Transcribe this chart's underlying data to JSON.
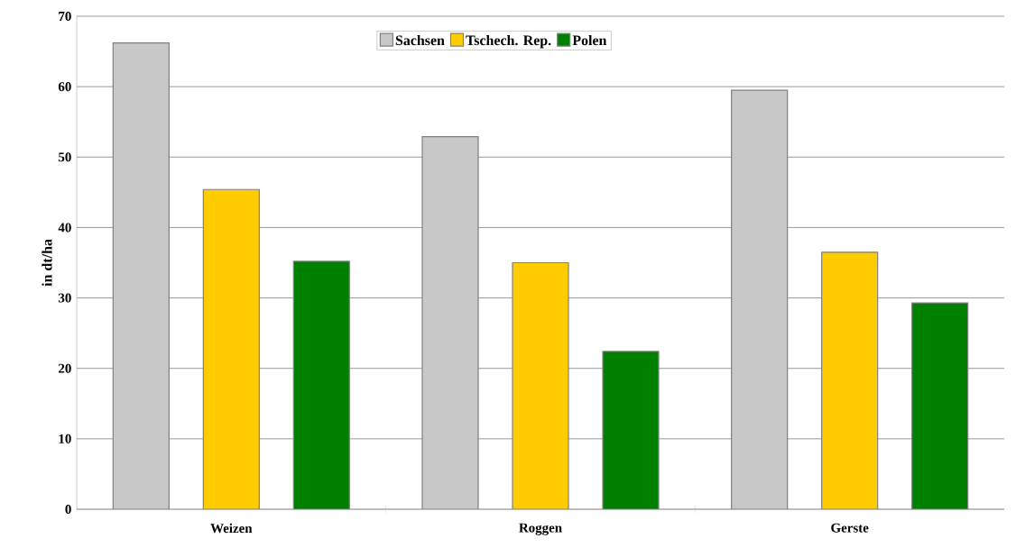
{
  "chart_data": {
    "type": "bar",
    "ylabel": "in dt/ha",
    "categories": [
      "Weizen",
      "Roggen",
      "Gerste"
    ],
    "series": [
      {
        "name": "Sachsen",
        "color": "#c8c8c8",
        "values": [
          66.2,
          52.9,
          59.5
        ]
      },
      {
        "name": "Tschech. Rep.",
        "color": "#ffcc00",
        "values": [
          45.4,
          35.0,
          36.5
        ]
      },
      {
        "name": "Polen",
        "color": "#008000",
        "values": [
          35.2,
          22.4,
          29.3
        ]
      }
    ],
    "ylim": [
      0,
      70
    ],
    "yticks": [
      0,
      10,
      20,
      30,
      40,
      50,
      60,
      70
    ],
    "grid": "y",
    "legend": "top"
  }
}
